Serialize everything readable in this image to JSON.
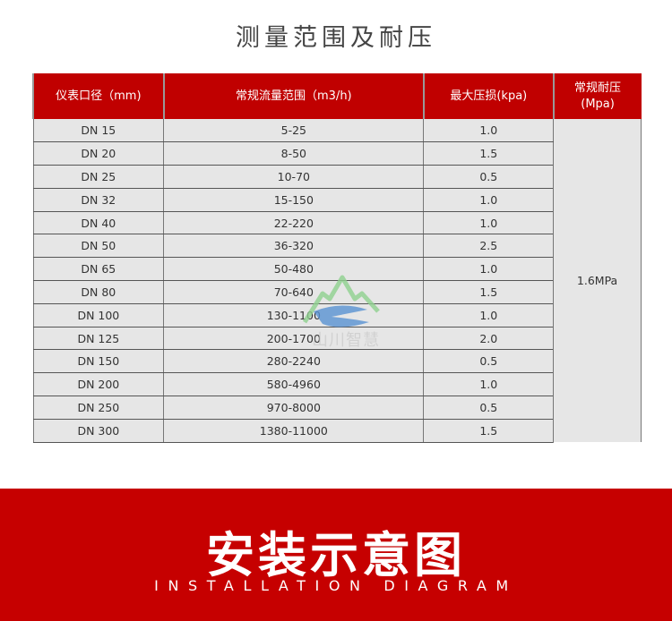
{
  "title": "测量范围及耐压",
  "table": {
    "headers": [
      "仪表口径（mm)",
      "常规流量范围（m3/h)",
      "最大压损(kpa)",
      "常规耐压\n(Mpa)"
    ],
    "pressure": "1.6MPa",
    "rows": [
      [
        "DN 15",
        "5-25",
        "1.0"
      ],
      [
        "DN 20",
        "8-50",
        "1.5"
      ],
      [
        "DN 25",
        "10-70",
        "0.5"
      ],
      [
        "DN 32",
        "15-150",
        "1.0"
      ],
      [
        "DN 40",
        "22-220",
        "1.0"
      ],
      [
        "DN 50",
        "36-320",
        "2.5"
      ],
      [
        "DN 65",
        "50-480",
        "1.0"
      ],
      [
        "DN 80",
        "70-640",
        "1.5"
      ],
      [
        "DN 100",
        "130-1100",
        "1.0"
      ],
      [
        "DN 125",
        "200-1700",
        "2.0"
      ],
      [
        "DN 150",
        "280-2240",
        "0.5"
      ],
      [
        "DN 200",
        "580-4960",
        "1.0"
      ],
      [
        "DN 250",
        "970-8000",
        "0.5"
      ],
      [
        "DN 300",
        "1380-11000",
        "1.5"
      ]
    ]
  },
  "watermark": "山川智慧",
  "banner": {
    "title": "安装示意图",
    "subtitle": "INSTALLATION DIAGRAM"
  }
}
